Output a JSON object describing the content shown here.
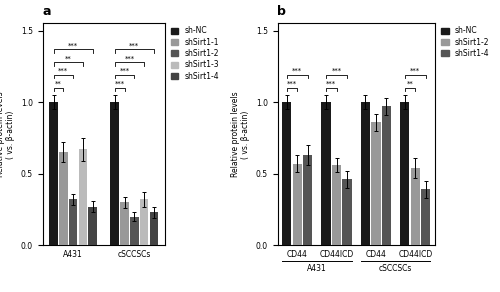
{
  "chart_data": [
    {
      "type": "bar",
      "title": "a",
      "categories": [
        "A431",
        "cSCCSCs"
      ],
      "series": [
        {
          "name": "sh-NC",
          "color": "#1a1a1a",
          "values": [
            1.0,
            1.0
          ],
          "errors": [
            0.05,
            0.05
          ]
        },
        {
          "name": "shSirt1-1",
          "color": "#999999",
          "values": [
            0.65,
            0.3
          ],
          "errors": [
            0.07,
            0.04
          ]
        },
        {
          "name": "shSirt1-2",
          "color": "#555555",
          "values": [
            0.32,
            0.2
          ],
          "errors": [
            0.04,
            0.03
          ]
        },
        {
          "name": "shSirt1-3",
          "color": "#bbbbbb",
          "values": [
            0.67,
            0.32
          ],
          "errors": [
            0.08,
            0.05
          ]
        },
        {
          "name": "shSirt1-4",
          "color": "#444444",
          "values": [
            0.27,
            0.23
          ],
          "errors": [
            0.04,
            0.04
          ]
        }
      ],
      "ylabel": "Relative protein levels\n( vs. β-actin)",
      "ylim": [
        0,
        1.55
      ],
      "yticks": [
        0.0,
        0.5,
        1.0,
        1.5
      ],
      "legend": "upper left",
      "annotations": [
        {
          "text": "**",
          "category": 0,
          "from": "sh-NC",
          "to": "shSirt1-1"
        },
        {
          "text": "***",
          "category": 0,
          "from": "sh-NC",
          "to": "shSirt1-2"
        },
        {
          "text": "**",
          "category": 0,
          "from": "sh-NC",
          "to": "shSirt1-3"
        },
        {
          "text": "***",
          "category": 0,
          "from": "sh-NC",
          "to": "shSirt1-4"
        },
        {
          "text": "***",
          "category": 1,
          "from": "sh-NC",
          "to": "shSirt1-1"
        },
        {
          "text": "***",
          "category": 1,
          "from": "sh-NC",
          "to": "shSirt1-2"
        },
        {
          "text": "***",
          "category": 1,
          "from": "sh-NC",
          "to": "shSirt1-3"
        },
        {
          "text": "***",
          "category": 1,
          "from": "sh-NC",
          "to": "shSirt1-4"
        }
      ]
    },
    {
      "type": "bar",
      "title": "b",
      "categories": [
        "CD44",
        "CD44ICD",
        "CD44",
        "CD44ICD"
      ],
      "series": [
        {
          "name": "sh-NC",
          "color": "#1a1a1a",
          "values": [
            1.0,
            1.0,
            1.0,
            1.0
          ],
          "errors": [
            0.05,
            0.05,
            0.05,
            0.05
          ]
        },
        {
          "name": "shSirt1-2",
          "color": "#999999",
          "values": [
            0.57,
            0.56,
            0.86,
            0.54
          ],
          "errors": [
            0.06,
            0.05,
            0.06,
            0.07
          ]
        },
        {
          "name": "shSirt1-4",
          "color": "#555555",
          "values": [
            0.63,
            0.46,
            0.97,
            0.39
          ],
          "errors": [
            0.07,
            0.06,
            0.06,
            0.06
          ]
        }
      ],
      "ylabel": "Relative protein levels\n( vs. β-actin)",
      "ylim": [
        0,
        1.55
      ],
      "yticks": [
        0.0,
        0.5,
        1.0,
        1.5
      ],
      "legend": "upper left",
      "annotations": [
        {
          "text": "***",
          "category": 0,
          "from": "sh-NC",
          "to": "shSirt1-2"
        },
        {
          "text": "***",
          "category": 0,
          "from": "sh-NC",
          "to": "shSirt1-4"
        },
        {
          "text": "***",
          "category": 1,
          "from": "sh-NC",
          "to": "shSirt1-2"
        },
        {
          "text": "***",
          "category": 1,
          "from": "sh-NC",
          "to": "shSirt1-4"
        },
        {
          "text": "**",
          "category": 3,
          "from": "sh-NC",
          "to": "shSirt1-2"
        },
        {
          "text": "***",
          "category": 3,
          "from": "sh-NC",
          "to": "shSirt1-4"
        },
        {
          "text": "A431",
          "span": [
            0,
            1
          ]
        },
        {
          "text": "cSCCSCs",
          "span": [
            2,
            3
          ]
        }
      ]
    }
  ]
}
